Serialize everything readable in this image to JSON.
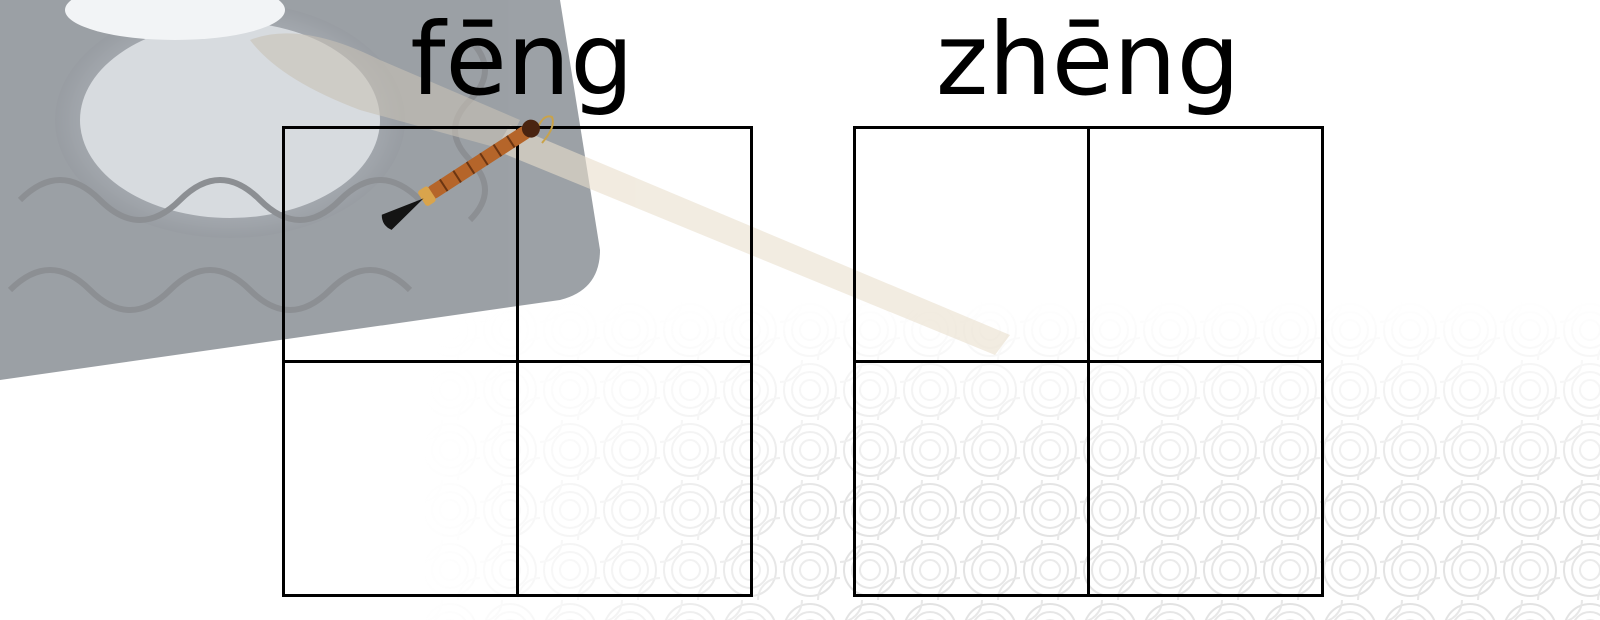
{
  "slide": {
    "background_color": "#ffffff",
    "line_color": "#000000",
    "characters": [
      {
        "pinyin": "fēng"
      },
      {
        "pinyin": "zhēng"
      }
    ],
    "decoration": {
      "background_icons": [
        "inkstone-icon",
        "calligraphy-brush-icon",
        "swirl-cloud-pattern-icon"
      ],
      "foreground_icon": "small-brush-icon"
    }
  }
}
